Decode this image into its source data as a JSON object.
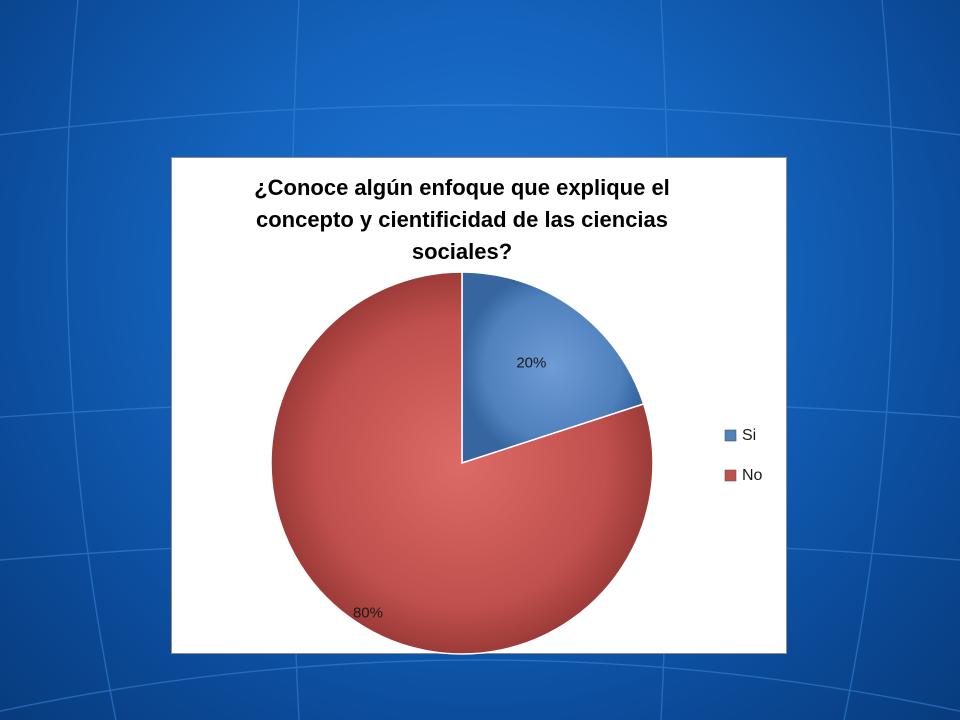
{
  "slide": {
    "background_color": "#1463bd",
    "grid_line_color": "#3a86d8"
  },
  "chart_data": {
    "type": "pie",
    "title": "¿Conoce algún enfoque que explique el concepto y cientificidad de las ciencias sociales?",
    "categories": [
      "Si",
      "No"
    ],
    "values": [
      20,
      80
    ],
    "value_labels": [
      "20%",
      "80%"
    ],
    "colors": [
      "#4f81bd",
      "#c0504d"
    ],
    "legend": {
      "position": "right",
      "entries": [
        "Si",
        "No"
      ]
    }
  }
}
